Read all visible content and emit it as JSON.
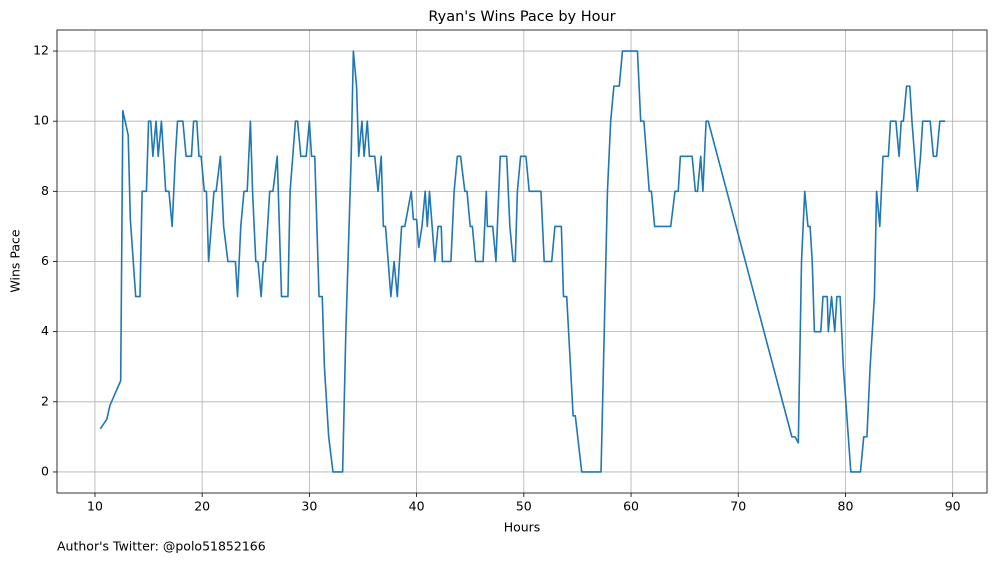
{
  "chart_data": {
    "type": "line",
    "title": "Ryan's Wins Pace by Hour",
    "x_label": "Hours",
    "y_label": "Wins Pace",
    "annotation": "Author's Twitter: @polo51852166",
    "color": "#1f77b4",
    "grid": true,
    "xlim": [
      6.46,
      93.2
    ],
    "ylim": [
      -0.6,
      12.6
    ],
    "xticks": [
      10,
      20,
      30,
      40,
      50,
      60,
      70,
      80,
      90
    ],
    "yticks": [
      0,
      2,
      4,
      6,
      8,
      10,
      12
    ],
    "x": [
      10.5,
      11.1,
      11.4,
      12.4,
      12.6,
      13.1,
      13.3,
      13.8,
      14.2,
      14.4,
      14.8,
      15.0,
      15.2,
      15.4,
      15.7,
      15.9,
      16.2,
      16.6,
      16.9,
      17.2,
      17.5,
      17.7,
      18.2,
      18.5,
      19.0,
      19.2,
      19.5,
      19.7,
      19.9,
      20.2,
      20.4,
      20.6,
      21.1,
      21.3,
      21.7,
      22.0,
      22.4,
      23.1,
      23.3,
      23.6,
      23.9,
      24.2,
      24.5,
      24.7,
      25.0,
      25.2,
      25.5,
      25.7,
      25.9,
      26.3,
      26.6,
      27.0,
      27.2,
      27.4,
      28.0,
      28.2,
      28.7,
      28.9,
      29.2,
      29.7,
      30.0,
      30.2,
      30.5,
      30.9,
      31.2,
      31.4,
      31.8,
      32.2,
      33.1,
      33.4,
      33.7,
      33.9,
      34.1,
      34.4,
      34.6,
      34.9,
      35.1,
      35.4,
      35.6,
      36.1,
      36.4,
      36.7,
      36.9,
      37.1,
      37.6,
      37.9,
      38.2,
      38.6,
      38.9,
      39.5,
      39.7,
      40.0,
      40.2,
      40.5,
      40.8,
      41.0,
      41.2,
      41.7,
      42.0,
      42.3,
      42.4,
      43.2,
      43.5,
      43.8,
      44.1,
      44.5,
      44.7,
      45.0,
      45.2,
      45.5,
      46.2,
      46.5,
      46.6,
      47.1,
      47.4,
      47.8,
      48.4,
      48.7,
      49.0,
      49.2,
      49.4,
      49.7,
      50.2,
      50.5,
      51.6,
      51.9,
      52.6,
      52.9,
      53.5,
      53.7,
      54.0,
      54.6,
      54.8,
      55.4,
      57.2,
      57.8,
      58.1,
      58.4,
      58.9,
      59.2,
      60.6,
      60.9,
      61.2,
      61.7,
      61.9,
      62.2,
      63.7,
      64.1,
      64.4,
      64.6,
      65.7,
      66.0,
      66.2,
      66.5,
      66.7,
      67.0,
      67.2,
      75.0,
      75.3,
      75.6,
      75.9,
      76.2,
      76.5,
      76.7,
      76.9,
      77.1,
      77.7,
      77.9,
      78.3,
      78.4,
      78.7,
      79.0,
      79.2,
      79.5,
      79.8,
      80.5,
      81.4,
      81.7,
      82.0,
      82.3,
      82.7,
      82.9,
      83.2,
      83.5,
      84.0,
      84.2,
      84.7,
      85.0,
      85.2,
      85.4,
      85.7,
      86.0,
      86.2,
      86.7,
      87.0,
      87.2,
      87.9,
      88.2,
      88.5,
      88.8,
      89.3
    ],
    "values": [
      1.23,
      1.5,
      1.9,
      2.6,
      10.3,
      9.6,
      7.2,
      5,
      5,
      8,
      8,
      10,
      10,
      9,
      10,
      9,
      10,
      8,
      8,
      7,
      9,
      10,
      10,
      9,
      9,
      10,
      10,
      9,
      9,
      8,
      8,
      6,
      8,
      8,
      9,
      7,
      6,
      6,
      5,
      7,
      8,
      8,
      10,
      8,
      6,
      6,
      5,
      6,
      6,
      8,
      8,
      9,
      7,
      5,
      5,
      8,
      10,
      10,
      9,
      9,
      10,
      9,
      9,
      5,
      5,
      3,
      1,
      0,
      0,
      4,
      7,
      9,
      12,
      11,
      9,
      10,
      9,
      10,
      9,
      9,
      8,
      9,
      7,
      7,
      5,
      6,
      5,
      7,
      7,
      8,
      7.2,
      7.2,
      6.4,
      7,
      8,
      7,
      8,
      6,
      7,
      7,
      6,
      6,
      8,
      9,
      9,
      8,
      8,
      7,
      7,
      6,
      6,
      8,
      7,
      7,
      6,
      9,
      9,
      7,
      6,
      6,
      8,
      9,
      9,
      8,
      8,
      6,
      6,
      7,
      7,
      5,
      5,
      1.6,
      1.6,
      0,
      0,
      8,
      10,
      11,
      11,
      12,
      12,
      10,
      10,
      8,
      8,
      7,
      7,
      8,
      8,
      9,
      9,
      8,
      8,
      9,
      8,
      10,
      10,
      1,
      1,
      0.83,
      6,
      8,
      7,
      7,
      6,
      4,
      4,
      5,
      5,
      4,
      5,
      4,
      5,
      5,
      3,
      0,
      0,
      1,
      1,
      3,
      5,
      8,
      7,
      9,
      9,
      10,
      10,
      9,
      10,
      10,
      11,
      11,
      10,
      8,
      9,
      10,
      10,
      9,
      9,
      10,
      10
    ]
  }
}
